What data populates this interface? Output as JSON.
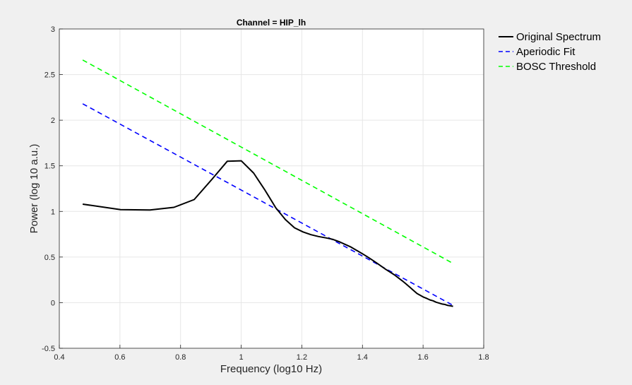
{
  "chart_data": {
    "type": "line",
    "title": "Channel = HIP_lh",
    "xlabel": "Frequency (log10 Hz)",
    "ylabel": "Power (log 10 a.u.)",
    "xlim": [
      0.4,
      1.8
    ],
    "ylim": [
      -0.5,
      3
    ],
    "xticks": [
      0.4,
      0.6,
      0.8,
      1.0,
      1.2,
      1.4,
      1.6,
      1.8
    ],
    "xtick_labels": [
      "0.4",
      "0.6",
      "0.8",
      "1",
      "1.2",
      "1.4",
      "1.6",
      "1.8"
    ],
    "yticks": [
      -0.5,
      0,
      0.5,
      1,
      1.5,
      2,
      2.5,
      3
    ],
    "ytick_labels": [
      "-0.5",
      "0",
      "0.5",
      "1",
      "1.5",
      "2",
      "2.5",
      "3"
    ],
    "legend_position": "outside-top-right",
    "series": [
      {
        "name": "Original Spectrum",
        "color": "#000000",
        "style": "solid",
        "x": [
          0.477,
          0.602,
          0.699,
          0.778,
          0.845,
          0.903,
          0.954,
          1.0,
          1.041,
          1.079,
          1.114,
          1.146,
          1.176,
          1.204,
          1.23,
          1.255,
          1.279,
          1.301,
          1.322,
          1.342,
          1.362,
          1.38,
          1.398,
          1.415,
          1.431,
          1.447,
          1.462,
          1.477,
          1.491,
          1.505,
          1.519,
          1.531,
          1.544,
          1.556,
          1.568,
          1.58,
          1.591,
          1.602,
          1.613,
          1.623,
          1.633,
          1.643,
          1.653,
          1.663,
          1.672,
          1.681,
          1.69,
          1.699
        ],
        "y": [
          1.08,
          1.02,
          1.015,
          1.045,
          1.13,
          1.35,
          1.55,
          1.555,
          1.42,
          1.23,
          1.04,
          0.91,
          0.82,
          0.775,
          0.745,
          0.725,
          0.71,
          0.695,
          0.67,
          0.64,
          0.61,
          0.575,
          0.54,
          0.505,
          0.47,
          0.435,
          0.4,
          0.365,
          0.335,
          0.305,
          0.27,
          0.24,
          0.205,
          0.17,
          0.135,
          0.1,
          0.08,
          0.06,
          0.045,
          0.03,
          0.02,
          0.005,
          -0.005,
          -0.015,
          -0.02,
          -0.03,
          -0.035,
          -0.04
        ]
      },
      {
        "name": "Aperiodic Fit",
        "color": "#0000ff",
        "style": "dashed",
        "x": [
          0.477,
          1.699
        ],
        "y": [
          2.18,
          -0.03
        ]
      },
      {
        "name": "BOSC Threshold",
        "color": "#00ff00",
        "style": "dashed",
        "x": [
          0.477,
          1.699
        ],
        "y": [
          2.66,
          0.43
        ]
      }
    ]
  }
}
